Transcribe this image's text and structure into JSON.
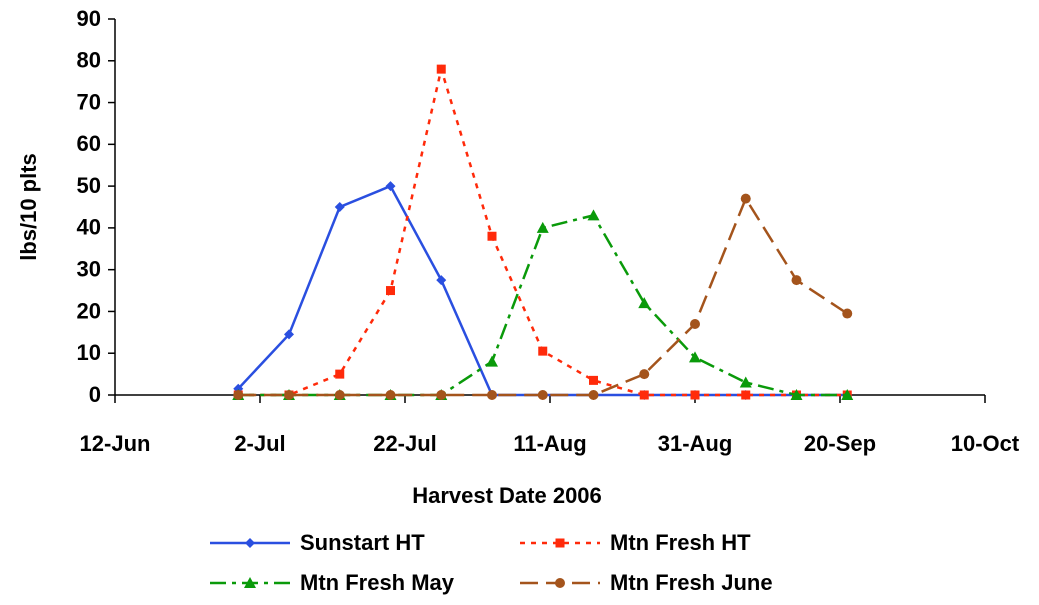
{
  "chart_data": {
    "type": "line",
    "x_label": "Harvest Date 2006",
    "y_label": "lbs/10 plts",
    "x": [
      "2006-06-29",
      "2006-07-06",
      "2006-07-13",
      "2006-07-20",
      "2006-07-27",
      "2006-08-03",
      "2006-08-10",
      "2006-08-17",
      "2006-08-24",
      "2006-08-31",
      "2006-09-07",
      "2006-09-14",
      "2006-09-21"
    ],
    "series": [
      {
        "name": "Sunstart HT",
        "color": "#2a4fe0",
        "marker": "diamond",
        "dash": "solid",
        "values": [
          1.5,
          14.5,
          45,
          50,
          27.5,
          0,
          0,
          0,
          0,
          0,
          0,
          0,
          0
        ]
      },
      {
        "name": "Mtn Fresh HT",
        "color": "#ff2a0a",
        "marker": "square",
        "dash": "dotted",
        "values": [
          0,
          0,
          5,
          25,
          78,
          38,
          10.5,
          3.5,
          0,
          0,
          0,
          0,
          0
        ]
      },
      {
        "name": "Mtn Fresh May",
        "color": "#0a9a0a",
        "marker": "triangle",
        "dash": "dashdot",
        "values": [
          0,
          0,
          0,
          0,
          0,
          8,
          40,
          43,
          22,
          9,
          3,
          0,
          0
        ]
      },
      {
        "name": "Mtn Fresh June",
        "color": "#a4541c",
        "marker": "circle",
        "dash": "dashed",
        "values": [
          0,
          0,
          0,
          0,
          0,
          0,
          0,
          0,
          5,
          17,
          47,
          27.5,
          19.5
        ]
      }
    ],
    "xlim": [
      "2006-06-12",
      "2006-10-10"
    ],
    "xticks": [
      {
        "value": "2006-06-12",
        "label": "12-Jun"
      },
      {
        "value": "2006-07-02",
        "label": "2-Jul"
      },
      {
        "value": "2006-07-22",
        "label": "22-Jul"
      },
      {
        "value": "2006-08-11",
        "label": "11-Aug"
      },
      {
        "value": "2006-08-31",
        "label": "31-Aug"
      },
      {
        "value": "2006-09-20",
        "label": "20-Sep"
      },
      {
        "value": "2006-10-10",
        "label": "10-Oct"
      }
    ],
    "ylim": [
      0,
      90
    ],
    "yticks": [
      0,
      10,
      20,
      30,
      40,
      50,
      60,
      70,
      80,
      90
    ],
    "legend": "bottom"
  }
}
